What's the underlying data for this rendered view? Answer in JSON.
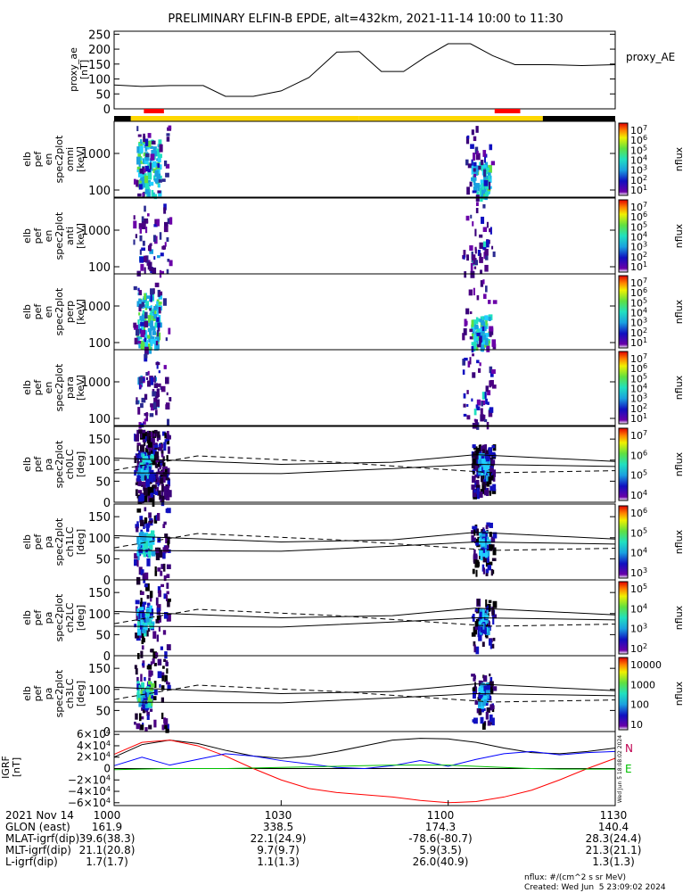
{
  "title": "PRELIMINARY ELFIN-B EPDE, alt=432km, 2021-11-14 10:00 to 11:30",
  "chart_data": [
    {
      "type": "line",
      "panel": "proxy_ae",
      "ylabel": [
        "proxy_ae",
        "[nT]"
      ],
      "series_label": "proxy_AE",
      "yticks": [
        "250",
        "200",
        "150",
        "100",
        "50",
        "0"
      ],
      "ylim": [
        0,
        260
      ],
      "x_unit": "minutes after 10:00",
      "x": [
        0,
        5,
        10,
        16,
        20,
        25,
        30,
        35,
        40,
        44,
        48,
        52,
        56,
        60,
        64,
        68,
        72,
        76,
        78,
        84,
        90
      ],
      "y": [
        80,
        75,
        78,
        78,
        42,
        42,
        60,
        105,
        190,
        192,
        125,
        125,
        175,
        218,
        218,
        178,
        148,
        148,
        148,
        145,
        148
      ],
      "color": "#000000"
    },
    {
      "type": "timebar",
      "panel": "orbit-bar",
      "segments": [
        {
          "start": 0,
          "end": 3,
          "color": "#000000"
        },
        {
          "start": 3,
          "end": 44,
          "color": "#ffd700"
        },
        {
          "start": 44,
          "end": 77,
          "color": "#ffd700"
        },
        {
          "start": 77,
          "end": 90,
          "color": "#000000"
        }
      ],
      "markers": [
        {
          "start": 1.5,
          "end": 3.5,
          "color": "#ff0000"
        },
        {
          "start": 64.5,
          "end": 67.5,
          "color": "#ff0000"
        }
      ]
    },
    {
      "type": "heatmap",
      "panel": "omni",
      "ylabel": [
        "elb",
        "pef",
        "en",
        "spec2plot",
        "omni",
        "[keV]"
      ],
      "yticks": [
        "1000",
        "100"
      ],
      "log_y": true,
      "colorbar": {
        "ticks": [
          "10<sup>7</sup>",
          "10<sup>6</sup>",
          "10<sup>5</sup>",
          "10<sup>4</sup>",
          "10<sup>3</sup>",
          "10<sup>2</sup>",
          "10<sup>1</sup>"
        ],
        "unit": "nflux"
      }
    },
    {
      "type": "heatmap",
      "panel": "anti",
      "ylabel": [
        "elb",
        "pef",
        "en",
        "spec2plot",
        "anti",
        "[keV]"
      ],
      "yticks": [
        "1000",
        "100"
      ],
      "log_y": true,
      "colorbar": {
        "ticks": [
          "10<sup>7</sup>",
          "10<sup>6</sup>",
          "10<sup>5</sup>",
          "10<sup>4</sup>",
          "10<sup>3</sup>",
          "10<sup>2</sup>",
          "10<sup>1</sup>"
        ],
        "unit": "nflux"
      }
    },
    {
      "type": "heatmap",
      "panel": "perp",
      "ylabel": [
        "elb",
        "pef",
        "en",
        "spec2plot",
        "perp",
        "[keV]"
      ],
      "yticks": [
        "1000",
        "100"
      ],
      "log_y": true,
      "colorbar": {
        "ticks": [
          "10<sup>7</sup>",
          "10<sup>6</sup>",
          "10<sup>5</sup>",
          "10<sup>4</sup>",
          "10<sup>3</sup>",
          "10<sup>2</sup>",
          "10<sup>1</sup>"
        ],
        "unit": "nflux"
      }
    },
    {
      "type": "heatmap",
      "panel": "para",
      "ylabel": [
        "elb",
        "pef",
        "en",
        "spec2plot",
        "para",
        "[keV]"
      ],
      "yticks": [
        "1000",
        "100"
      ],
      "log_y": true,
      "colorbar": {
        "ticks": [
          "10<sup>7</sup>",
          "10<sup>6</sup>",
          "10<sup>5</sup>",
          "10<sup>4</sup>",
          "10<sup>3</sup>",
          "10<sup>2</sup>",
          "10<sup>1</sup>"
        ],
        "unit": "nflux"
      }
    },
    {
      "type": "heatmap",
      "panel": "ch0LC",
      "ylabel": [
        "elb",
        "pef",
        "pa",
        "spec2plot",
        "ch0LC",
        "[deg]"
      ],
      "yticks": [
        "150",
        "100",
        "50",
        "0"
      ],
      "ylim": [
        0,
        180
      ],
      "colorbar": {
        "ticks": [
          "10<sup>7</sup>",
          "10<sup>6</sup>",
          "10<sup>5</sup>",
          "10<sup>4</sup>"
        ],
        "unit": "nflux"
      }
    },
    {
      "type": "heatmap",
      "panel": "ch1LC",
      "ylabel": [
        "elb",
        "pef",
        "pa",
        "spec2plot",
        "ch1LC",
        "[deg]"
      ],
      "yticks": [
        "150",
        "100",
        "50",
        "0"
      ],
      "ylim": [
        0,
        180
      ],
      "colorbar": {
        "ticks": [
          "10<sup>6</sup>",
          "10<sup>5</sup>",
          "10<sup>4</sup>",
          "10<sup>3</sup>"
        ],
        "unit": "nflux"
      }
    },
    {
      "type": "heatmap",
      "panel": "ch2LC",
      "ylabel": [
        "elb",
        "pef",
        "pa",
        "spec2plot",
        "ch2LC",
        "[deg]"
      ],
      "yticks": [
        "150",
        "100",
        "50",
        "0"
      ],
      "ylim": [
        0,
        180
      ],
      "colorbar": {
        "ticks": [
          "10<sup>5</sup>",
          "10<sup>4</sup>",
          "10<sup>3</sup>",
          "10<sup>2</sup>"
        ],
        "unit": "nflux"
      }
    },
    {
      "type": "heatmap",
      "panel": "ch3LC",
      "ylabel": [
        "elb",
        "pef",
        "pa",
        "spec2plot",
        "ch3LC",
        "[deg]"
      ],
      "yticks": [
        "150",
        "100",
        "50",
        "0"
      ],
      "ylim": [
        0,
        180
      ],
      "colorbar": {
        "ticks": [
          "10000",
          "1000",
          "100",
          "10"
        ],
        "unit": "nflux"
      }
    },
    {
      "type": "line",
      "panel": "IGRF",
      "ylabel": [
        "IGRF",
        "[nT]"
      ],
      "yticks": [
        "6×10<sup>4</sup>",
        "4×10<sup>4</sup>",
        "2×10<sup>4</sup>",
        "0",
        "−2×10<sup>4</sup>",
        "−4×10<sup>4</sup>",
        "−6×10<sup>4</sup>"
      ],
      "ylim": [
        -65000,
        65000
      ],
      "legend": [
        "N",
        "E"
      ],
      "side_note": "Wed Jun  5 18:08:02 2024",
      "x_unit": "minutes after 10:00",
      "x": [
        0,
        5,
        10,
        15,
        20,
        25,
        30,
        35,
        40,
        45,
        50,
        55,
        60,
        65,
        70,
        75,
        80,
        85,
        90
      ],
      "series": [
        {
          "color": "#000000",
          "values": [
            20000,
            42000,
            50000,
            44000,
            32000,
            22000,
            18000,
            22000,
            30000,
            40000,
            50000,
            53000,
            52000,
            46000,
            36000,
            28000,
            26000,
            30000,
            36000
          ]
        },
        {
          "color": "#ff0000",
          "values": [
            25000,
            46000,
            50000,
            40000,
            22000,
            0,
            -20000,
            -35000,
            -42000,
            -46000,
            -50000,
            -56000,
            -60000,
            -58000,
            -50000,
            -38000,
            -20000,
            0,
            18000
          ]
        },
        {
          "color": "#0000ff",
          "values": [
            5000,
            20000,
            6000,
            16000,
            26000,
            22000,
            14000,
            8000,
            2000,
            0,
            5000,
            14000,
            4000,
            16000,
            26000,
            30000,
            24000,
            28000,
            30000
          ]
        },
        {
          "color": "#00c000",
          "values": [
            -2000,
            -1000,
            0,
            0,
            0,
            1000,
            2000,
            3000,
            4000,
            5000,
            6000,
            6000,
            6000,
            4000,
            2000,
            0,
            -1000,
            -1000,
            -1000
          ]
        }
      ]
    }
  ],
  "footer": {
    "rows": [
      {
        "label": "2021 Nov 14",
        "values": [
          "1000",
          "1030",
          "1100",
          "1130"
        ]
      },
      {
        "label": "GLON (east)",
        "values": [
          "161.9",
          "338.5",
          "174.3",
          "140.4"
        ]
      },
      {
        "label": "MLAT-igrf(dip)",
        "values": [
          "39.6(38.3)",
          "22.1(24.9)",
          "-78.6(-80.7)",
          "28.3(24.4)"
        ]
      },
      {
        "label": "MLT-igrf(dip)",
        "values": [
          "21.1(20.8)",
          "9.7(9.7)",
          "5.9(3.5)",
          "21.3(21.1)"
        ]
      },
      {
        "label": "L-igrf(dip)",
        "values": [
          "1.7(1.7)",
          "1.1(1.3)",
          "26.0(40.9)",
          "1.3(1.3)"
        ]
      }
    ],
    "note1": "nflux: #/(cm^2 s sr MeV)",
    "note2": "Created: Wed Jun  5 23:09:02 2024"
  }
}
